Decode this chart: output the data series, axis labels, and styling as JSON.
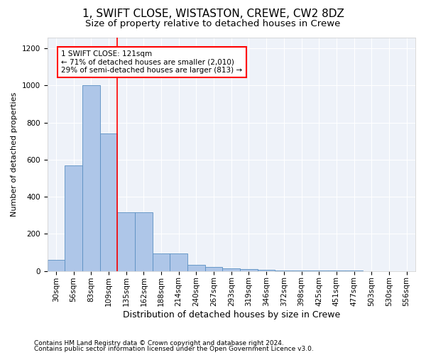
{
  "title1": "1, SWIFT CLOSE, WISTASTON, CREWE, CW2 8DZ",
  "title2": "Size of property relative to detached houses in Crewe",
  "xlabel": "Distribution of detached houses by size in Crewe",
  "ylabel": "Number of detached properties",
  "categories": [
    "30sqm",
    "56sqm",
    "83sqm",
    "109sqm",
    "135sqm",
    "162sqm",
    "188sqm",
    "214sqm",
    "240sqm",
    "267sqm",
    "293sqm",
    "319sqm",
    "346sqm",
    "372sqm",
    "398sqm",
    "425sqm",
    "451sqm",
    "477sqm",
    "503sqm",
    "530sqm",
    "556sqm"
  ],
  "values": [
    60,
    570,
    1000,
    740,
    315,
    315,
    95,
    95,
    35,
    22,
    15,
    10,
    8,
    2,
    2,
    1,
    1,
    1,
    0,
    0,
    0
  ],
  "bar_color": "#aec6e8",
  "bar_edge_color": "#5a8fc2",
  "red_line_x": 3.5,
  "annotation_text": "1 SWIFT CLOSE: 121sqm\n← 71% of detached houses are smaller (2,010)\n29% of semi-detached houses are larger (813) →",
  "annotation_box_color": "white",
  "annotation_box_edge": "red",
  "footer1": "Contains HM Land Registry data © Crown copyright and database right 2024.",
  "footer2": "Contains public sector information licensed under the Open Government Licence v3.0.",
  "ylim": [
    0,
    1260
  ],
  "yticks": [
    0,
    200,
    400,
    600,
    800,
    1000,
    1200
  ],
  "background_color": "#eef2f9",
  "title1_fontsize": 11,
  "title2_fontsize": 9.5,
  "xlabel_fontsize": 9,
  "ylabel_fontsize": 8,
  "tick_fontsize": 7.5,
  "annot_fontsize": 7.5,
  "footer_fontsize": 6.5
}
